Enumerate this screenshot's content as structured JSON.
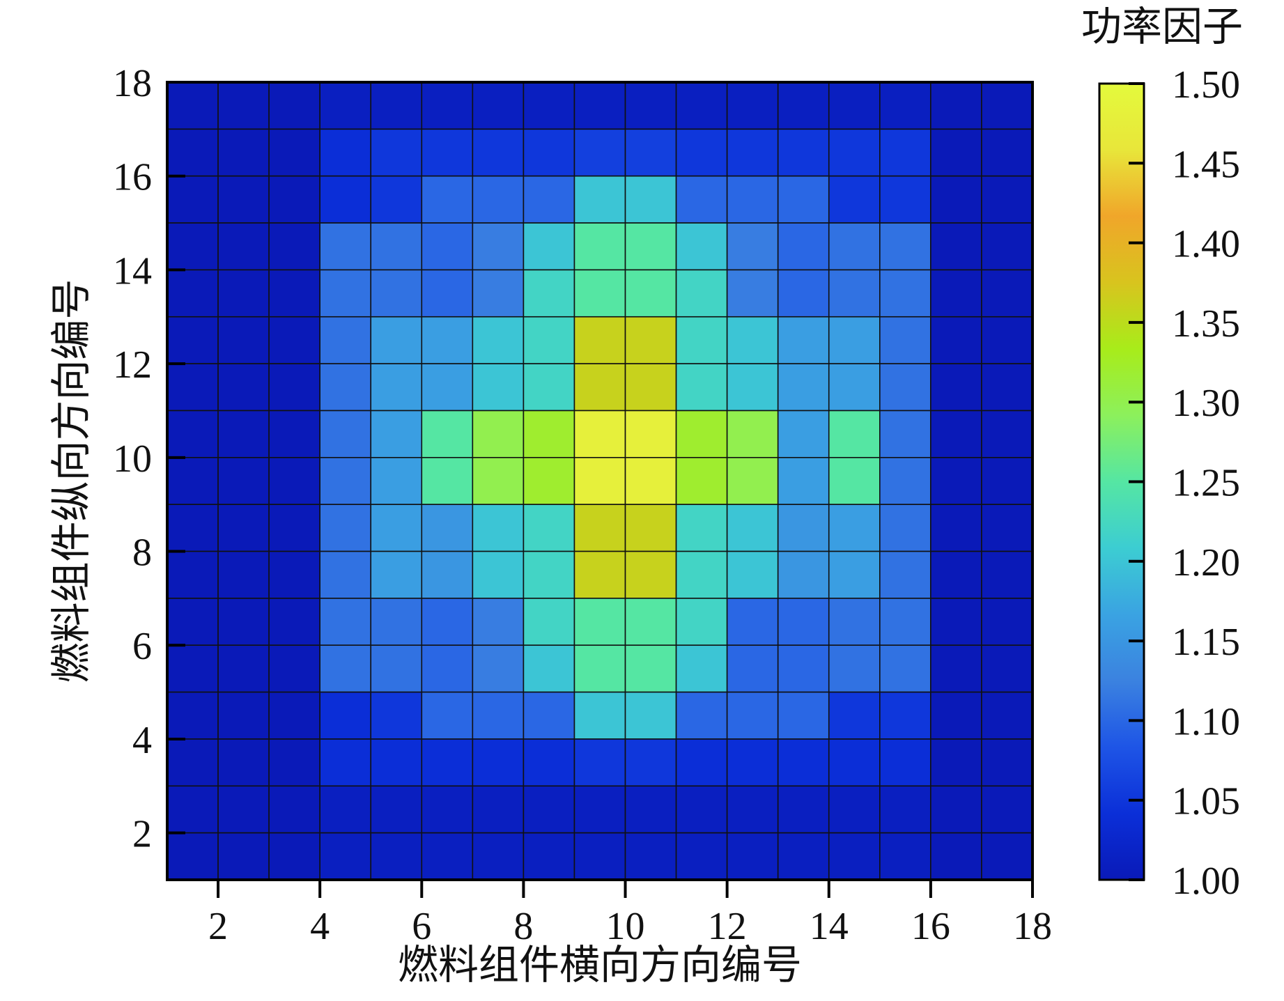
{
  "chart_data": {
    "type": "heatmap",
    "title": "",
    "xlabel": "燃料组件横向方向编号",
    "ylabel": "燃料组件纵向方向编号",
    "x_ticks": [
      "2",
      "4",
      "6",
      "8",
      "10",
      "12",
      "14",
      "16",
      "18"
    ],
    "y_ticks": [
      "2",
      "4",
      "6",
      "8",
      "10",
      "12",
      "14",
      "16",
      "18"
    ],
    "xlim": [
      1,
      18
    ],
    "ylim": [
      1,
      18
    ],
    "grid": false,
    "colorbar": {
      "title": "功率因子",
      "min": 1.0,
      "max": 1.5,
      "ticks": [
        "1.00",
        "1.05",
        "1.10",
        "1.15",
        "1.20",
        "1.25",
        "1.30",
        "1.35",
        "1.40",
        "1.45",
        "1.50"
      ],
      "colors": [
        "#0a1ab8",
        "#0b2fd8",
        "#1e55e6",
        "#3b82e0",
        "#3aa3e2",
        "#3ccdd2",
        "#55e6a3",
        "#8cf05c",
        "#a8ec1a",
        "#d8c41e",
        "#f0a62a",
        "#e8e63a",
        "#e4fa3c"
      ]
    },
    "rows_top_to_bottom": [
      [
        1.0,
        1.0,
        1.0,
        1.01,
        1.01,
        1.01,
        1.01,
        1.01,
        1.01,
        1.01,
        1.01,
        1.01,
        1.01,
        1.01,
        1.01,
        1.0,
        1.0
      ],
      [
        1.0,
        1.0,
        1.0,
        1.04,
        1.05,
        1.05,
        1.05,
        1.05,
        1.06,
        1.06,
        1.05,
        1.05,
        1.05,
        1.05,
        1.05,
        1.0,
        1.0
      ],
      [
        1.0,
        1.0,
        1.0,
        1.04,
        1.05,
        1.1,
        1.1,
        1.1,
        1.2,
        1.2,
        1.1,
        1.1,
        1.1,
        1.05,
        1.05,
        1.0,
        1.0
      ],
      [
        1.0,
        1.0,
        1.0,
        1.11,
        1.11,
        1.1,
        1.12,
        1.2,
        1.25,
        1.25,
        1.2,
        1.12,
        1.1,
        1.11,
        1.11,
        1.0,
        1.0
      ],
      [
        1.0,
        1.0,
        1.0,
        1.11,
        1.11,
        1.1,
        1.12,
        1.22,
        1.25,
        1.25,
        1.22,
        1.12,
        1.1,
        1.11,
        1.11,
        1.0,
        1.0
      ],
      [
        1.0,
        1.0,
        1.0,
        1.11,
        1.16,
        1.16,
        1.2,
        1.22,
        1.36,
        1.36,
        1.22,
        1.2,
        1.16,
        1.16,
        1.11,
        1.0,
        1.0
      ],
      [
        1.0,
        1.0,
        1.0,
        1.11,
        1.16,
        1.16,
        1.2,
        1.22,
        1.36,
        1.36,
        1.22,
        1.2,
        1.16,
        1.16,
        1.11,
        1.0,
        1.0
      ],
      [
        1.0,
        1.0,
        1.0,
        1.11,
        1.16,
        1.25,
        1.3,
        1.32,
        1.48,
        1.48,
        1.32,
        1.3,
        1.16,
        1.25,
        1.11,
        1.0,
        1.0
      ],
      [
        1.0,
        1.0,
        1.0,
        1.11,
        1.16,
        1.25,
        1.3,
        1.32,
        1.48,
        1.48,
        1.32,
        1.3,
        1.16,
        1.25,
        1.11,
        1.0,
        1.0
      ],
      [
        1.0,
        1.0,
        1.0,
        1.11,
        1.16,
        1.15,
        1.2,
        1.22,
        1.36,
        1.36,
        1.22,
        1.2,
        1.15,
        1.16,
        1.11,
        1.0,
        1.0
      ],
      [
        1.0,
        1.0,
        1.0,
        1.11,
        1.16,
        1.15,
        1.2,
        1.22,
        1.36,
        1.36,
        1.22,
        1.2,
        1.15,
        1.16,
        1.11,
        1.0,
        1.0
      ],
      [
        1.0,
        1.0,
        1.0,
        1.11,
        1.11,
        1.1,
        1.12,
        1.22,
        1.25,
        1.25,
        1.22,
        1.1,
        1.1,
        1.11,
        1.11,
        1.0,
        1.0
      ],
      [
        1.0,
        1.0,
        1.0,
        1.11,
        1.11,
        1.1,
        1.12,
        1.2,
        1.25,
        1.25,
        1.2,
        1.1,
        1.1,
        1.11,
        1.11,
        1.0,
        1.0
      ],
      [
        1.0,
        1.0,
        1.0,
        1.04,
        1.05,
        1.1,
        1.1,
        1.1,
        1.2,
        1.2,
        1.1,
        1.1,
        1.1,
        1.05,
        1.05,
        1.0,
        1.0
      ],
      [
        1.0,
        1.0,
        1.0,
        1.04,
        1.04,
        1.04,
        1.04,
        1.04,
        1.05,
        1.05,
        1.04,
        1.04,
        1.04,
        1.04,
        1.04,
        1.0,
        1.0
      ],
      [
        1.0,
        1.0,
        1.0,
        1.01,
        1.01,
        1.01,
        1.01,
        1.01,
        1.01,
        1.01,
        1.01,
        1.01,
        1.01,
        1.01,
        1.01,
        1.0,
        1.0
      ],
      [
        1.0,
        1.0,
        1.0,
        1.01,
        1.01,
        1.01,
        1.01,
        1.01,
        1.01,
        1.01,
        1.01,
        1.01,
        1.01,
        1.01,
        1.01,
        1.0,
        1.0
      ]
    ]
  }
}
